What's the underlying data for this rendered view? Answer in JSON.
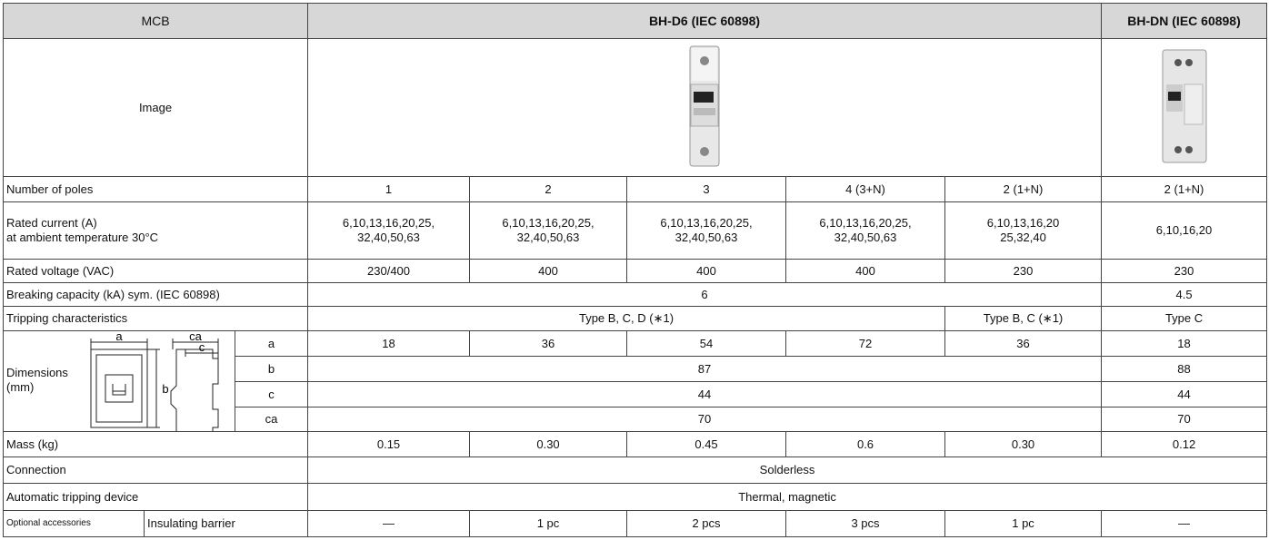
{
  "table": {
    "header": {
      "mcb": "MCB",
      "bh_d6": "BH-D6 (IEC 60898)",
      "bh_dn": "BH-DN (IEC 60898)"
    },
    "image_row": {
      "label": "Image"
    },
    "poles": {
      "label": "Number of poles",
      "values": [
        "1",
        "2",
        "3",
        "4 (3+N)",
        "2 (1+N)",
        "2 (1+N)"
      ]
    },
    "rated_current": {
      "label": [
        "Rated current (A)",
        "at ambient temperature 30°C"
      ],
      "values": [
        [
          "6,10,13,16,20,25,",
          "32,40,50,63"
        ],
        [
          "6,10,13,16,20,25,",
          "32,40,50,63"
        ],
        [
          "6,10,13,16,20,25,",
          "32,40,50,63"
        ],
        [
          "6,10,13,16,20,25,",
          "32,40,50,63"
        ],
        [
          "6,10,13,16,20",
          "25,32,40"
        ],
        [
          "6,10,16,20"
        ]
      ]
    },
    "rated_voltage": {
      "label": "Rated voltage (VAC)",
      "values": [
        "230/400",
        "400",
        "400",
        "400",
        "230",
        "230"
      ]
    },
    "breaking_capacity": {
      "label": "Breaking capacity (kA) sym. (IEC 60898)",
      "values": [
        "6",
        "4.5"
      ]
    },
    "tripping": {
      "label": "Tripping characteristics",
      "values": [
        "Type B, C, D (∗1)",
        "Type B, C (∗1)",
        "Type C"
      ]
    },
    "dimensions": {
      "label": [
        "Dimensions",
        "(mm)"
      ],
      "diagram": {
        "a": "a",
        "b": "b",
        "c": "c",
        "ca": "ca"
      },
      "rows": [
        {
          "name": "a",
          "values": [
            "18",
            "36",
            "54",
            "72",
            "36",
            "18"
          ]
        },
        {
          "name": "b",
          "values": [
            "87",
            "88"
          ]
        },
        {
          "name": "c",
          "values": [
            "44",
            "44"
          ]
        },
        {
          "name": "ca",
          "values": [
            "70",
            "70"
          ]
        }
      ]
    },
    "mass": {
      "label": "Mass (kg)",
      "values": [
        "0.15",
        "0.30",
        "0.45",
        "0.6",
        "0.30",
        "0.12"
      ]
    },
    "connection": {
      "label": "Connection",
      "value": "Solderless"
    },
    "automatic_tripping": {
      "label": "Automatic tripping device",
      "value": "Thermal, magnetic"
    },
    "optional_accessories": {
      "label": "Optional accessories",
      "item": "Insulating barrier",
      "values": [
        "—",
        "1 pc",
        "2 pcs",
        "3 pcs",
        "1 pc",
        "—"
      ]
    }
  }
}
